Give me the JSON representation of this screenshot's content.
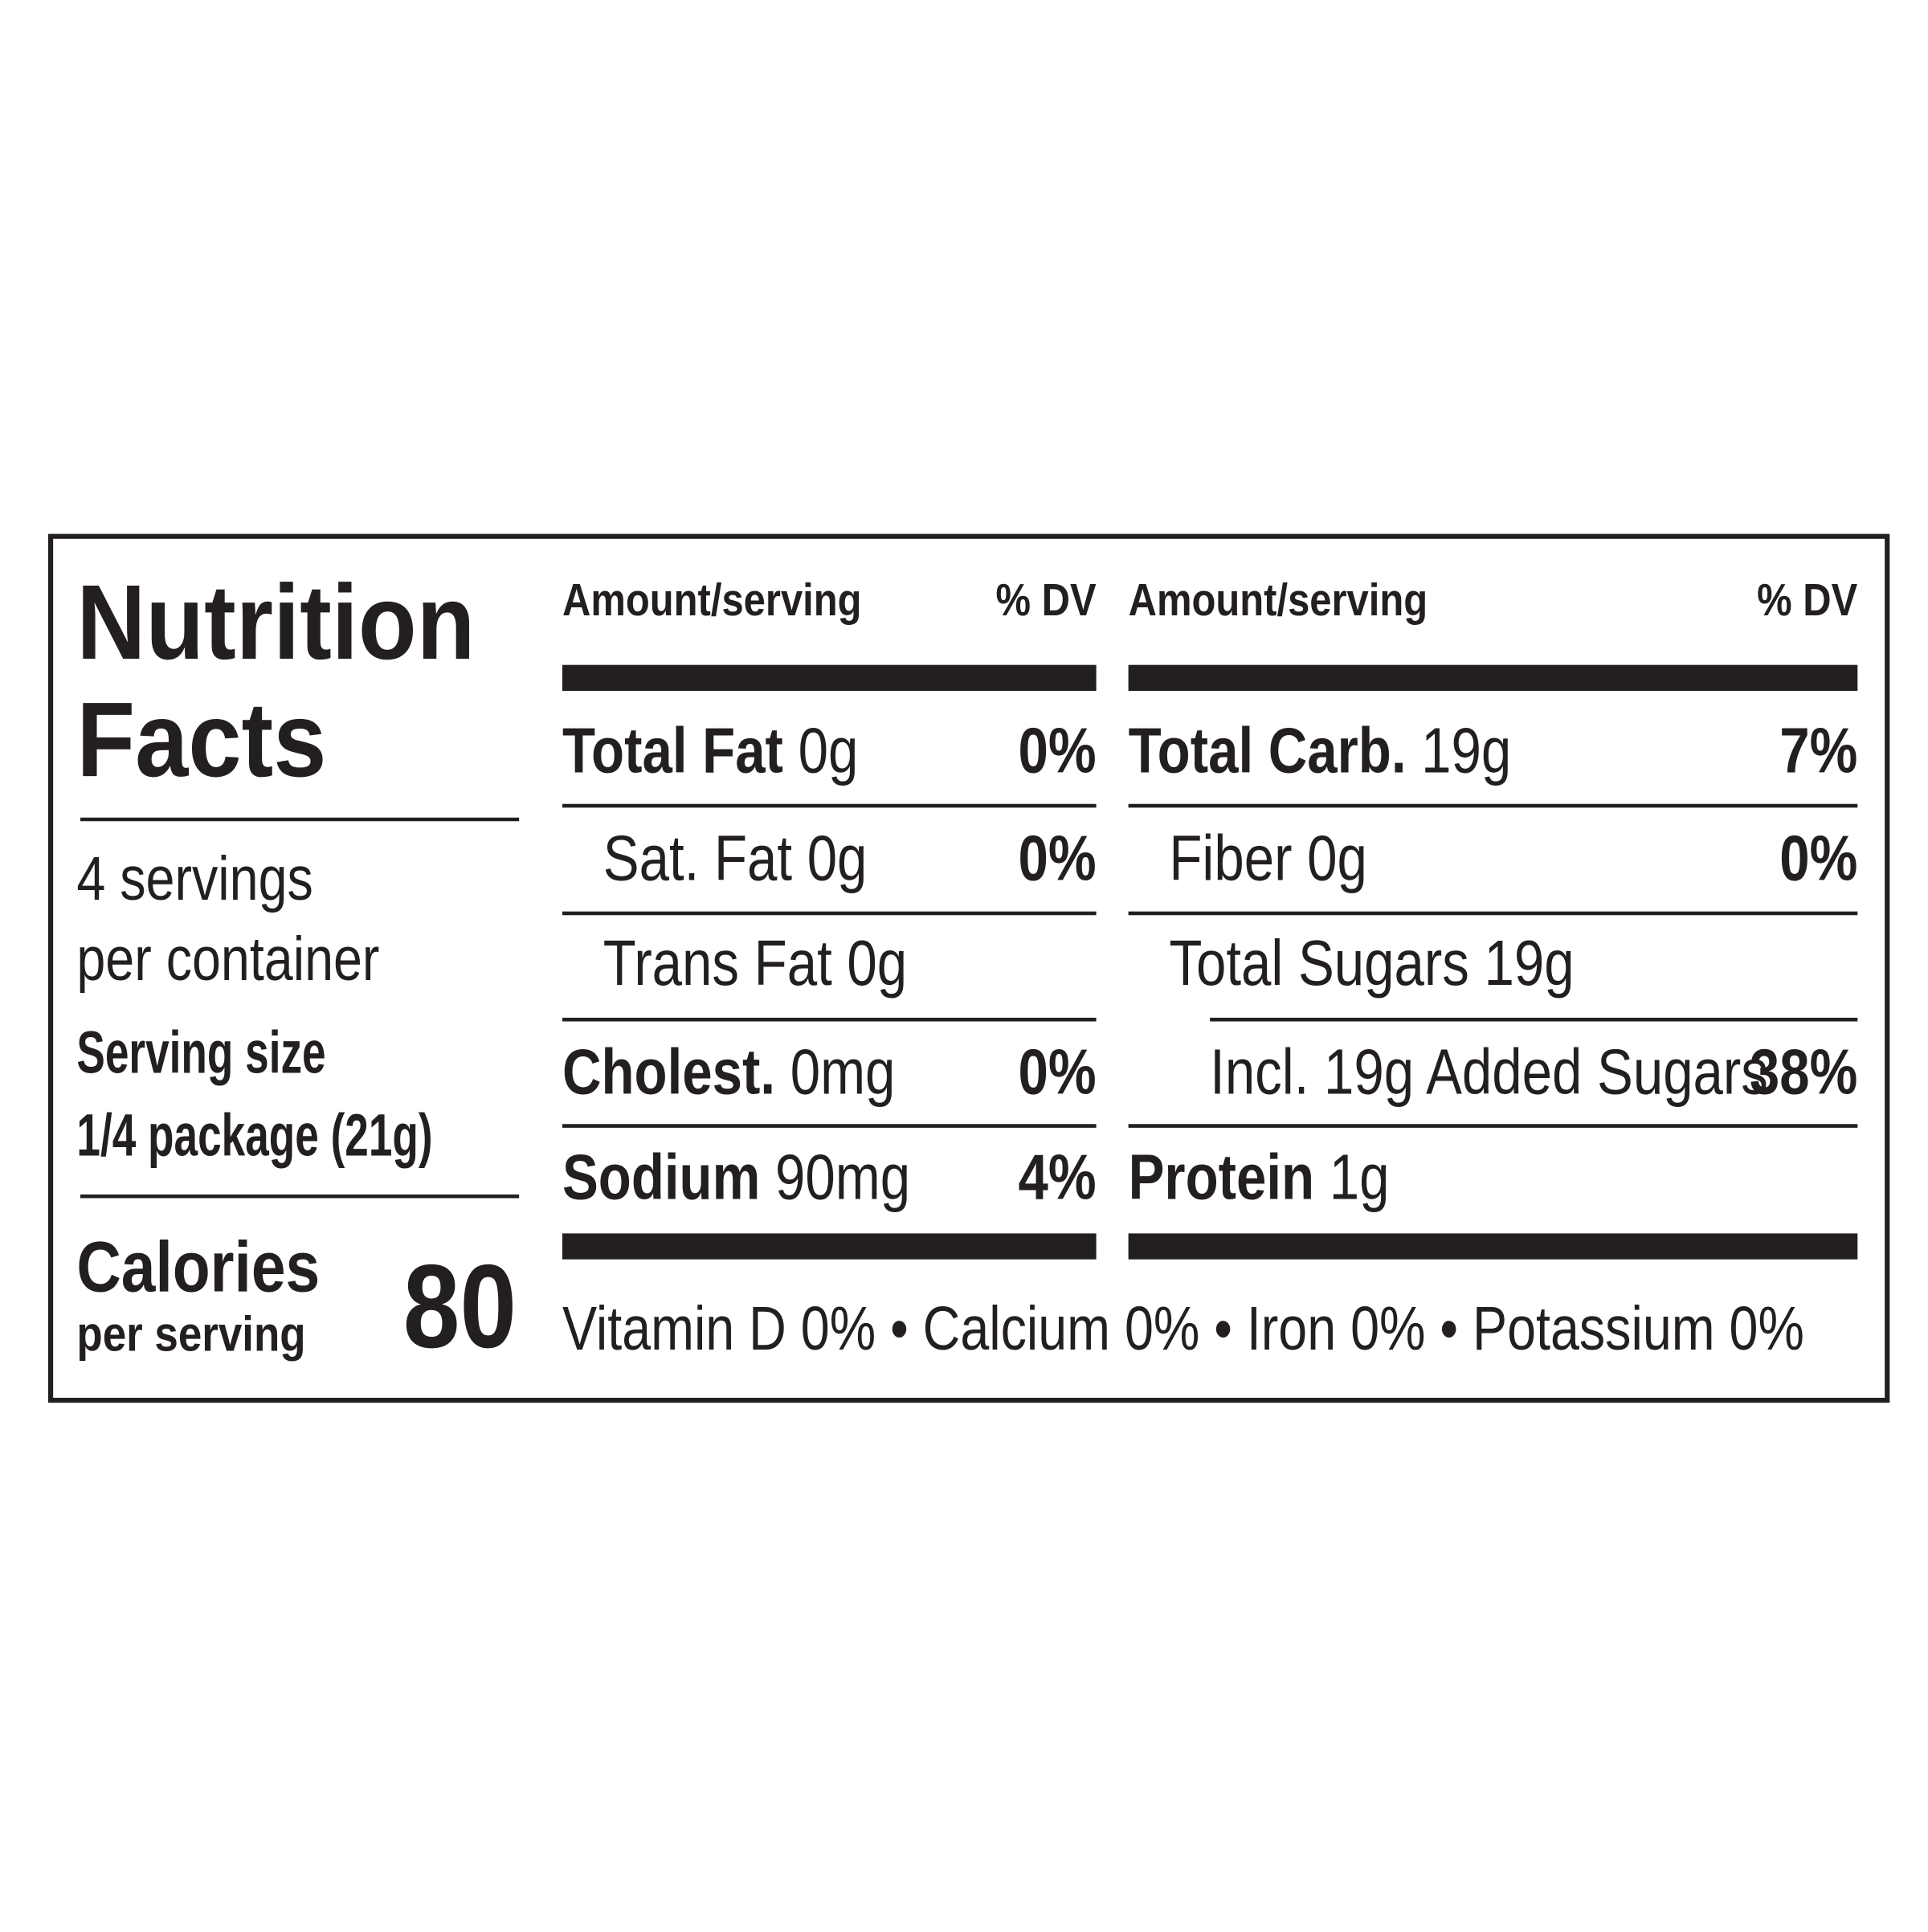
{
  "label": {
    "title_lines": [
      "Nutrition",
      "Facts"
    ],
    "servings_lines": [
      "4 servings",
      "per container"
    ],
    "serving_size_label": "Serving size",
    "serving_size": "1/4 package (21g)",
    "calories_label": "Calories",
    "calories_sub": "per serving",
    "calories": "80",
    "columns": [
      {
        "header_amount": "Amount/serving",
        "header_dv": "% DV",
        "rows": [
          {
            "name": "Total Fat",
            "amount": "0g",
            "dv": "0%",
            "bold": true
          },
          {
            "name": "Sat. Fat",
            "amount": "0g",
            "dv": "0%"
          },
          {
            "name": "Trans Fat",
            "amount": "0g"
          },
          {
            "name": "Cholest.",
            "amount": "0mg",
            "dv": "0%",
            "bold": true
          },
          {
            "name": "Sodium",
            "amount": "90mg",
            "dv": "4%",
            "bold": true
          }
        ]
      },
      {
        "header_amount": "Amount/serving",
        "header_dv": "% DV",
        "rows": [
          {
            "name": "Total Carb.",
            "amount": "19g",
            "dv": "7%",
            "bold": true
          },
          {
            "name": "Fiber",
            "amount": "0g",
            "dv": "0%"
          },
          {
            "name": "Total Sugars",
            "amount": "19g"
          },
          {
            "name": "Incl. 19g Added Sugars",
            "dv": "38%",
            "sub": true
          },
          {
            "name": "Protein",
            "amount": "1g",
            "bold": true
          }
        ]
      }
    ],
    "footer": {
      "separator": "•",
      "items": [
        {
          "name": "Vitamin D",
          "value": "0%"
        },
        {
          "name": "Calcium",
          "value": "0%"
        },
        {
          "name": "Iron",
          "value": "0%"
        },
        {
          "name": "Potassium",
          "value": "0%"
        }
      ]
    }
  }
}
